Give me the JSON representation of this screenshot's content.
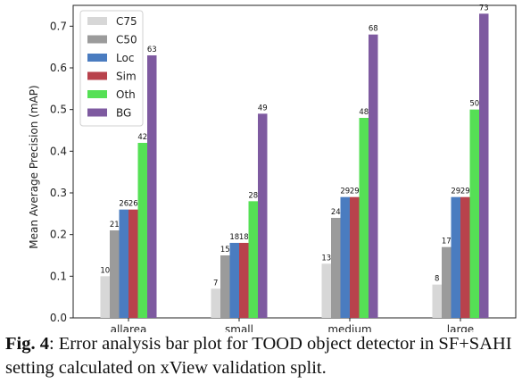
{
  "chart_data": {
    "type": "bar",
    "ylabel": "Mean Average Precision (mAP)",
    "xlabel": "",
    "ylim": [
      0,
      0.75
    ],
    "yticks": [
      "0.0",
      "0.1",
      "0.2",
      "0.3",
      "0.4",
      "0.5",
      "0.6",
      "0.7"
    ],
    "grid": false,
    "legend_position": "top-left",
    "categories": [
      "allarea",
      "small",
      "medium",
      "large"
    ],
    "series": [
      {
        "name": "C75",
        "color": "#d7d7d7",
        "values": [
          0.1,
          0.07,
          0.13,
          0.08
        ],
        "labels": [
          "10",
          "7",
          "13",
          "8"
        ]
      },
      {
        "name": "C50",
        "color": "#9b9b9b",
        "values": [
          0.21,
          0.15,
          0.24,
          0.17
        ],
        "labels": [
          "21",
          "15",
          "24",
          "17"
        ]
      },
      {
        "name": "Loc",
        "color": "#4a7cc0",
        "values": [
          0.26,
          0.18,
          0.29,
          0.29
        ],
        "labels": [
          "26",
          "18",
          "29",
          "29"
        ]
      },
      {
        "name": "Sim",
        "color": "#b8424c",
        "values": [
          0.26,
          0.18,
          0.29,
          0.29
        ],
        "labels": [
          "26",
          "18",
          "29",
          "29"
        ]
      },
      {
        "name": "Oth",
        "color": "#55e055",
        "values": [
          0.42,
          0.28,
          0.48,
          0.5
        ],
        "labels": [
          "42",
          "28",
          "48",
          "50"
        ]
      },
      {
        "name": "BG",
        "color": "#7e5aa0",
        "values": [
          0.63,
          0.49,
          0.68,
          0.73
        ],
        "labels": [
          "63",
          "49",
          "68",
          "73"
        ]
      }
    ]
  },
  "caption": {
    "figure": "Fig. 4",
    "text": ": Error analysis bar plot for TOOD object detector in SF+SAHI setting calculated on xView validation split."
  }
}
